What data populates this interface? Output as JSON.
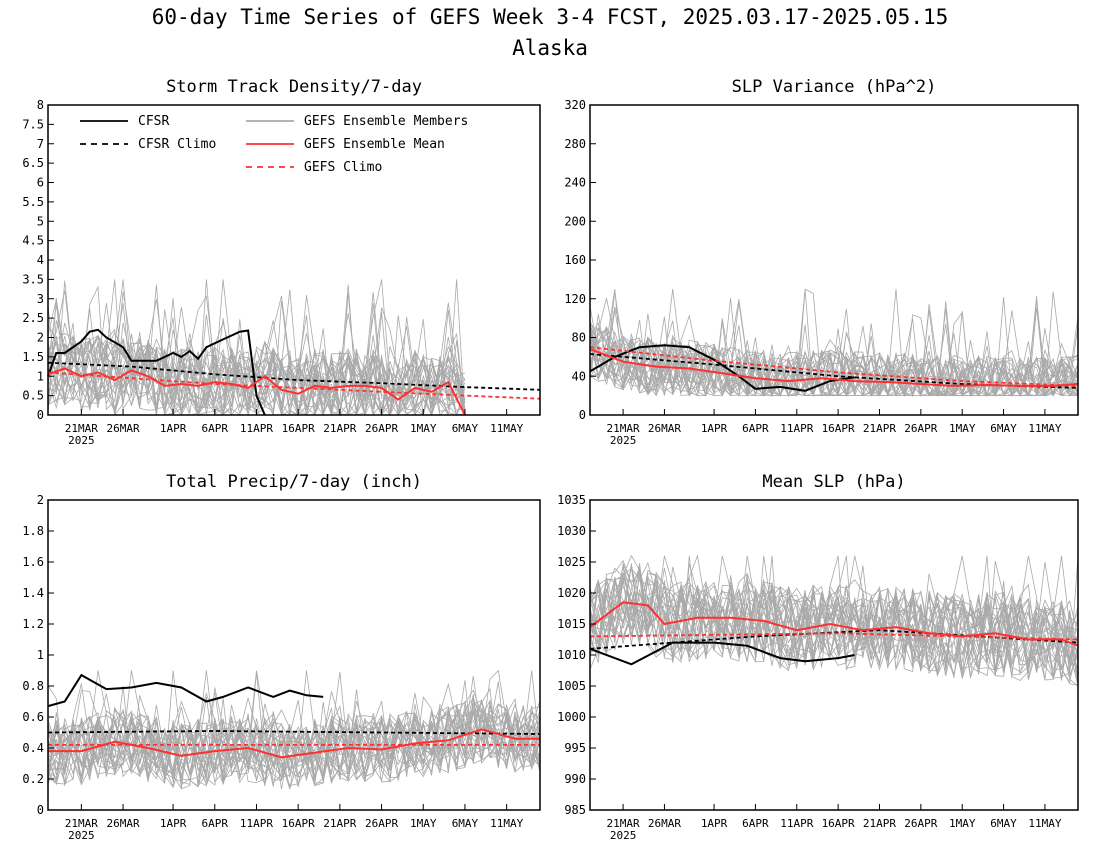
{
  "page": {
    "title": "60-day Time Series of GEFS Week 3-4 FCST, 2025.03.17-2025.05.15",
    "subtitle": "Alaska"
  },
  "colors": {
    "cfsr": "#000000",
    "members": "#a9a9a9",
    "gefs": "#ff3030"
  },
  "x_ticks": [
    "21MAR",
    "26MAR",
    "1APR",
    "6APR",
    "11APR",
    "16APR",
    "21APR",
    "26APR",
    "1MAY",
    "6MAY",
    "11MAY"
  ],
  "x_year": "2025",
  "legend": {
    "cfsr": "CFSR",
    "cfsr_climo": "CFSR Climo",
    "members": "GEFS Ensemble Members",
    "gefs_mean": "GEFS Ensemble Mean",
    "gefs_climo": "GEFS Climo"
  },
  "chart_data": [
    {
      "type": "line",
      "title": "Storm Track Density/7-day",
      "x_start": "2025-03-17",
      "x_end": "2025-05-15",
      "ylim": [
        0,
        8
      ],
      "yticks": [
        "0",
        "0.5",
        "1",
        "1.5",
        "2",
        "2.5",
        "3",
        "3.5",
        "4",
        "4.5",
        "5",
        "5.5",
        "6",
        "6.5",
        "7",
        "7.5",
        "8"
      ],
      "ensemble_members": {
        "count": 30,
        "y_range": [
          0,
          3.5
        ]
      },
      "series": [
        {
          "name": "CFSR",
          "style": "solid-black",
          "x": [
            "2025-03-17",
            "2025-03-18",
            "2025-03-19",
            "2025-03-21",
            "2025-03-22",
            "2025-03-23",
            "2025-03-24",
            "2025-03-26",
            "2025-03-27",
            "2025-03-28",
            "2025-03-30",
            "2025-04-01",
            "2025-04-02",
            "2025-04-03",
            "2025-04-04",
            "2025-04-05",
            "2025-04-07",
            "2025-04-09",
            "2025-04-10",
            "2025-04-11",
            "2025-04-12"
          ],
          "values": [
            1.0,
            1.6,
            1.6,
            1.9,
            2.15,
            2.2,
            2.0,
            1.75,
            1.4,
            1.4,
            1.4,
            1.6,
            1.5,
            1.65,
            1.45,
            1.75,
            1.95,
            2.15,
            2.18,
            0.5,
            0.0
          ]
        },
        {
          "name": "CFSR Climo",
          "style": "dashed-black",
          "x": [
            "2025-03-17",
            "2025-03-27",
            "2025-04-06",
            "2025-04-16",
            "2025-04-26",
            "2025-05-06",
            "2025-05-15"
          ],
          "values": [
            1.35,
            1.25,
            1.05,
            0.9,
            0.82,
            0.72,
            0.65
          ]
        },
        {
          "name": "GEFS Ensemble Mean",
          "style": "solid-red",
          "x": [
            "2025-03-17",
            "2025-03-19",
            "2025-03-21",
            "2025-03-23",
            "2025-03-25",
            "2025-03-27",
            "2025-03-29",
            "2025-03-31",
            "2025-04-02",
            "2025-04-04",
            "2025-04-06",
            "2025-04-08",
            "2025-04-10",
            "2025-04-12",
            "2025-04-14",
            "2025-04-16",
            "2025-04-18",
            "2025-04-20",
            "2025-04-22",
            "2025-04-24",
            "2025-04-26",
            "2025-04-28",
            "2025-04-30",
            "2025-05-02",
            "2025-05-04",
            "2025-05-06"
          ],
          "values": [
            1.05,
            1.2,
            1.0,
            1.1,
            0.9,
            1.15,
            1.0,
            0.75,
            0.8,
            0.75,
            0.85,
            0.8,
            0.7,
            1.0,
            0.65,
            0.55,
            0.75,
            0.7,
            0.75,
            0.75,
            0.7,
            0.4,
            0.7,
            0.6,
            0.85,
            0.0
          ]
        },
        {
          "name": "GEFS Climo",
          "style": "dashed-red",
          "x": [
            "2025-03-17",
            "2025-03-27",
            "2025-04-06",
            "2025-04-16",
            "2025-04-26",
            "2025-05-06",
            "2025-05-15"
          ],
          "values": [
            1.1,
            0.95,
            0.8,
            0.7,
            0.6,
            0.5,
            0.42
          ]
        }
      ]
    },
    {
      "type": "line",
      "title": "SLP Variance (hPa^2)",
      "x_start": "2025-03-17",
      "x_end": "2025-05-15",
      "ylim": [
        0,
        320
      ],
      "yticks": [
        "0",
        "40",
        "80",
        "120",
        "160",
        "200",
        "240",
        "280",
        "320"
      ],
      "ensemble_members": {
        "count": 30,
        "y_range": [
          20,
          130
        ]
      },
      "series": [
        {
          "name": "CFSR",
          "style": "solid-black",
          "x": [
            "2025-03-17",
            "2025-03-20",
            "2025-03-23",
            "2025-03-26",
            "2025-03-29",
            "2025-04-01",
            "2025-04-04",
            "2025-04-06",
            "2025-04-09",
            "2025-04-12",
            "2025-04-15",
            "2025-04-18"
          ],
          "values": [
            45,
            60,
            70,
            72,
            70,
            57,
            40,
            27,
            29,
            25,
            35,
            39
          ]
        },
        {
          "name": "CFSR Climo",
          "style": "dashed-black",
          "x": [
            "2025-03-17",
            "2025-04-01",
            "2025-04-16",
            "2025-05-01",
            "2025-05-15"
          ],
          "values": [
            63,
            52,
            40,
            32,
            28
          ]
        },
        {
          "name": "GEFS Ensemble Mean",
          "style": "solid-red",
          "x": [
            "2025-03-17",
            "2025-03-21",
            "2025-03-25",
            "2025-03-29",
            "2025-04-02",
            "2025-04-06",
            "2025-04-10",
            "2025-04-14",
            "2025-04-18",
            "2025-04-22",
            "2025-04-26",
            "2025-04-30",
            "2025-05-04",
            "2025-05-08",
            "2025-05-12",
            "2025-05-15"
          ],
          "values": [
            68,
            55,
            50,
            48,
            43,
            38,
            35,
            38,
            35,
            34,
            32,
            30,
            31,
            30,
            30,
            32
          ]
        },
        {
          "name": "GEFS Climo",
          "style": "dashed-red",
          "x": [
            "2025-03-17",
            "2025-04-01",
            "2025-04-16",
            "2025-05-01",
            "2025-05-15"
          ],
          "values": [
            70,
            56,
            44,
            35,
            30
          ]
        }
      ]
    },
    {
      "type": "line",
      "title": "Total Precip/7-day (inch)",
      "x_start": "2025-03-17",
      "x_end": "2025-05-15",
      "ylim": [
        0,
        2
      ],
      "yticks": [
        "0",
        "0.2",
        "0.4",
        "0.6",
        "0.8",
        "1",
        "1.2",
        "1.4",
        "1.6",
        "1.8",
        "2"
      ],
      "ensemble_members": {
        "count": 30,
        "y_range": [
          0.1,
          0.9
        ]
      },
      "series": [
        {
          "name": "CFSR",
          "style": "solid-black",
          "x": [
            "2025-03-17",
            "2025-03-19",
            "2025-03-21",
            "2025-03-24",
            "2025-03-27",
            "2025-03-30",
            "2025-04-02",
            "2025-04-05",
            "2025-04-07",
            "2025-04-10",
            "2025-04-13",
            "2025-04-15",
            "2025-04-17",
            "2025-04-19"
          ],
          "values": [
            0.67,
            0.7,
            0.87,
            0.78,
            0.79,
            0.82,
            0.79,
            0.7,
            0.73,
            0.79,
            0.73,
            0.77,
            0.74,
            0.73
          ]
        },
        {
          "name": "CFSR Climo",
          "style": "dashed-black",
          "x": [
            "2025-03-17",
            "2025-04-06",
            "2025-04-26",
            "2025-05-15"
          ],
          "values": [
            0.5,
            0.51,
            0.5,
            0.49
          ]
        },
        {
          "name": "GEFS Ensemble Mean",
          "style": "solid-red",
          "x": [
            "2025-03-17",
            "2025-03-21",
            "2025-03-25",
            "2025-03-29",
            "2025-04-02",
            "2025-04-06",
            "2025-04-10",
            "2025-04-14",
            "2025-04-18",
            "2025-04-22",
            "2025-04-26",
            "2025-04-30",
            "2025-05-04",
            "2025-05-08",
            "2025-05-12",
            "2025-05-15"
          ],
          "values": [
            0.38,
            0.38,
            0.44,
            0.4,
            0.35,
            0.38,
            0.4,
            0.34,
            0.37,
            0.4,
            0.39,
            0.43,
            0.45,
            0.52,
            0.46,
            0.46
          ]
        },
        {
          "name": "GEFS Climo",
          "style": "dashed-red",
          "x": [
            "2025-03-17",
            "2025-04-16",
            "2025-05-15"
          ],
          "values": [
            0.42,
            0.42,
            0.42
          ]
        }
      ]
    },
    {
      "type": "line",
      "title": "Mean SLP (hPa)",
      "x_start": "2025-03-17",
      "x_end": "2025-05-15",
      "ylim": [
        985,
        1035
      ],
      "yticks": [
        "985",
        "990",
        "995",
        "1000",
        "1005",
        "1010",
        "1015",
        "1020",
        "1025",
        "1030",
        "1035"
      ],
      "ensemble_members": {
        "count": 30,
        "y_range": [
          1001,
          1026
        ]
      },
      "series": [
        {
          "name": "CFSR",
          "style": "solid-black",
          "x": [
            "2025-03-17",
            "2025-03-22",
            "2025-03-27",
            "2025-04-01",
            "2025-04-05",
            "2025-04-09",
            "2025-04-12",
            "2025-04-16",
            "2025-04-18"
          ],
          "values": [
            1011,
            1008.5,
            1012,
            1012,
            1011.5,
            1009.5,
            1009,
            1009.5,
            1010
          ]
        },
        {
          "name": "CFSR Climo",
          "style": "dashed-black",
          "x": [
            "2025-03-17",
            "2025-04-06",
            "2025-04-21",
            "2025-05-15"
          ],
          "values": [
            1011,
            1013,
            1014,
            1012
          ]
        },
        {
          "name": "GEFS Ensemble Mean",
          "style": "solid-red",
          "x": [
            "2025-03-17",
            "2025-03-21",
            "2025-03-24",
            "2025-03-26",
            "2025-03-30",
            "2025-04-03",
            "2025-04-07",
            "2025-04-11",
            "2025-04-15",
            "2025-04-19",
            "2025-04-23",
            "2025-04-27",
            "2025-05-01",
            "2025-05-05",
            "2025-05-09",
            "2025-05-13",
            "2025-05-15"
          ],
          "values": [
            1014.5,
            1018.5,
            1018,
            1015,
            1016,
            1016,
            1015.5,
            1014,
            1015,
            1014,
            1014.5,
            1013.5,
            1013,
            1013.5,
            1012.5,
            1012.5,
            1011.5
          ]
        },
        {
          "name": "GEFS Climo",
          "style": "dashed-red",
          "x": [
            "2025-03-17",
            "2025-04-16",
            "2025-05-15"
          ],
          "values": [
            1013,
            1013.5,
            1012.5
          ]
        }
      ]
    }
  ]
}
